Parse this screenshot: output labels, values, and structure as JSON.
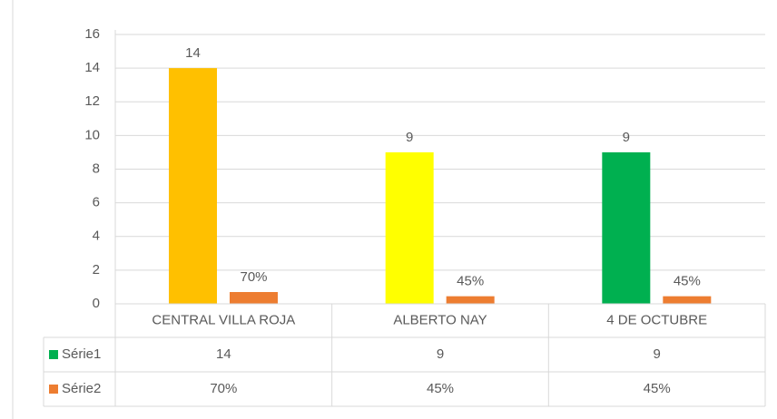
{
  "chart_data": {
    "type": "bar",
    "categories": [
      "CENTRAL VILLA ROJA",
      "ALBERTO NAY",
      "4 DE OCTUBRE"
    ],
    "series": [
      {
        "name": "Série1",
        "color": "#00b050",
        "point_colors": [
          "#ffc000",
          "#ffff00",
          "#00b050"
        ],
        "values": [
          14,
          9,
          9
        ]
      },
      {
        "name": "Série2",
        "color": "#ed7d31",
        "values": [
          0.7,
          0.45,
          0.45
        ],
        "value_labels": [
          "70%",
          "45%",
          "45%"
        ]
      }
    ],
    "ylim": [
      0,
      16
    ],
    "yticks": [
      0,
      2,
      4,
      6,
      8,
      10,
      12,
      14,
      16
    ],
    "grid": true,
    "data_table": true
  }
}
